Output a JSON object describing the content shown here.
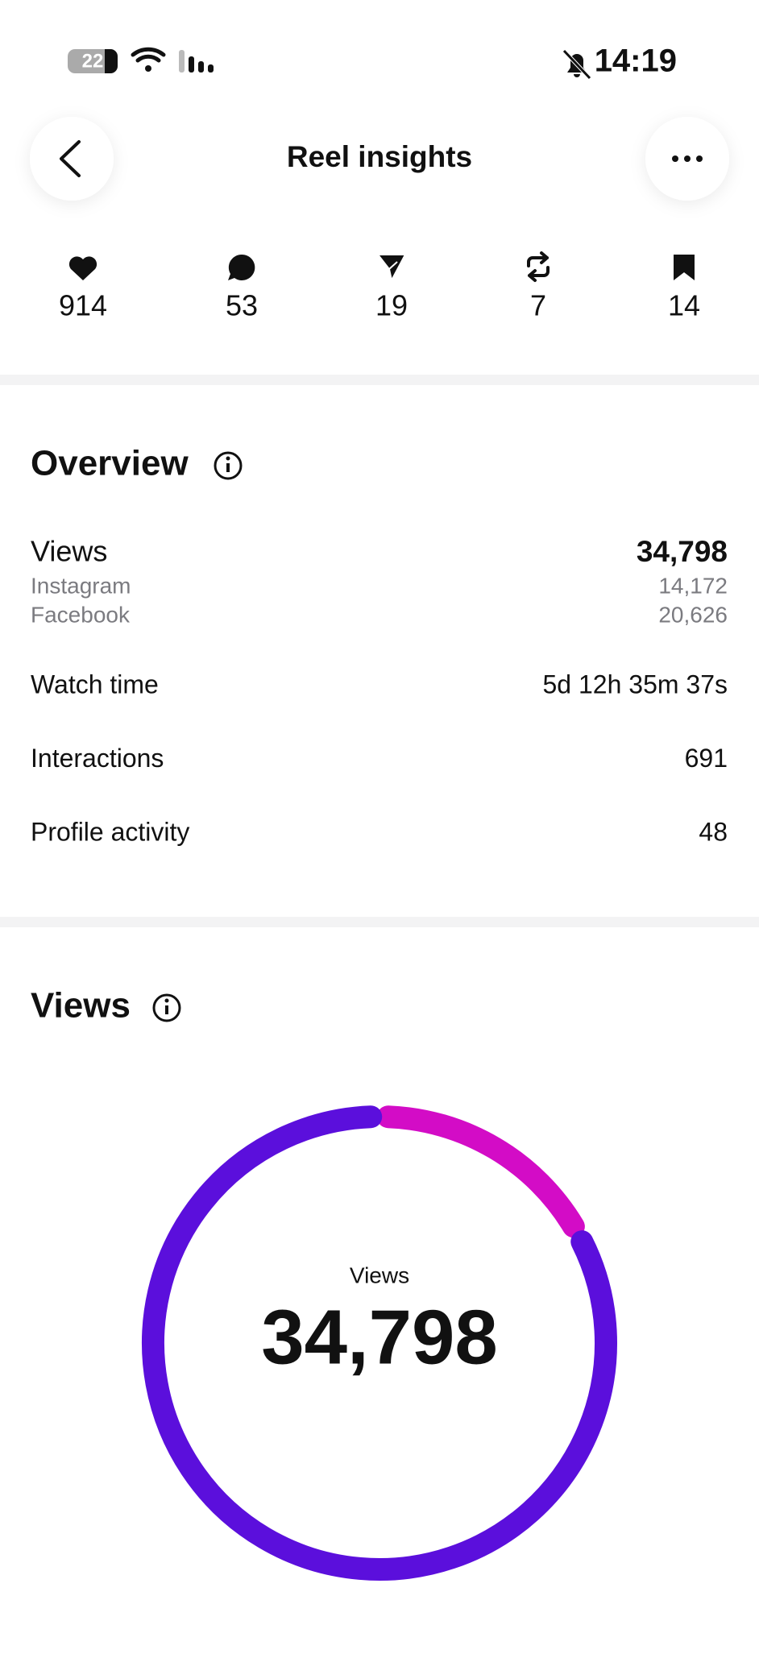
{
  "status_bar": {
    "battery": "22",
    "time": "14:19"
  },
  "header": {
    "title": "Reel insights"
  },
  "stats": [
    "914",
    "53",
    "19",
    "7",
    "14"
  ],
  "overview": {
    "title": "Overview",
    "views": {
      "label": "Views",
      "value": "34,798",
      "breakdown": [
        [
          "Instagram",
          "14,172"
        ],
        [
          "Facebook",
          "20,626"
        ]
      ]
    },
    "rows": [
      [
        "Watch time",
        "5d 12h 35m 37s"
      ],
      [
        "Interactions",
        "691"
      ],
      [
        "Profile activity",
        "48"
      ]
    ]
  },
  "views_section": {
    "title": "Views",
    "chart": {
      "type": "donut",
      "center_label": "Views",
      "center_value": "34,798",
      "values": [
        17,
        83
      ],
      "colors": [
        "#d30cc6",
        "#5b0fdc"
      ]
    }
  }
}
